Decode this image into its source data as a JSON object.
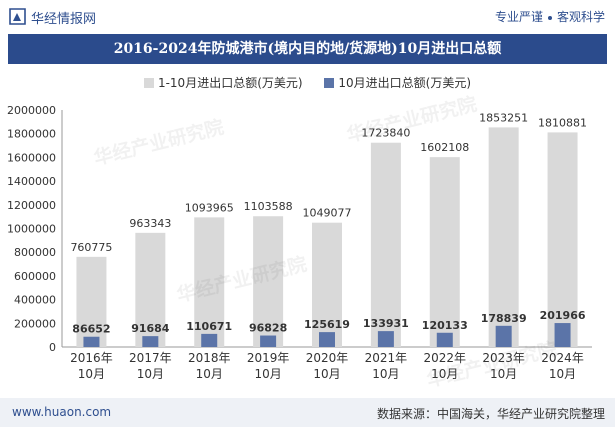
{
  "header": {
    "brand": "华经情报网",
    "slogan_left": "专业严谨",
    "slogan_right": "客观科学"
  },
  "watermark": "华经产业研究院",
  "footer": {
    "site": "www.huaon.com",
    "source": "数据来源：中国海关，华经产业研究院整理"
  },
  "colors": {
    "title_bg": "#2b4b8c",
    "series_total": "#d9d9d9",
    "series_october": "#5b74a8"
  },
  "chart_data": {
    "type": "bar",
    "title": "2016-2024年防城港市(境内目的地/货源地)10月进出口总额",
    "categories": [
      "2016年\n10月",
      "2017年\n10月",
      "2018年\n10月",
      "2019年\n10月",
      "2020年\n10月",
      "2021年\n10月",
      "2022年\n10月",
      "2023年\n10月",
      "2024年\n10月"
    ],
    "series": [
      {
        "name": "1-10月进出口总额(万美元)",
        "values": [
          760775,
          963343,
          1093965,
          1103588,
          1049077,
          1723840,
          1602108,
          1853251,
          1810881
        ]
      },
      {
        "name": "10月进出口总额(万美元)",
        "values": [
          86652,
          91684,
          110671,
          96828,
          125619,
          133931,
          120133,
          178839,
          201966
        ]
      }
    ],
    "ylim": [
      0,
      2000000
    ],
    "yticks": [
      0,
      200000,
      400000,
      600000,
      800000,
      1000000,
      1200000,
      1400000,
      1600000,
      1800000,
      2000000
    ],
    "legend_position": "top",
    "grid": false
  }
}
